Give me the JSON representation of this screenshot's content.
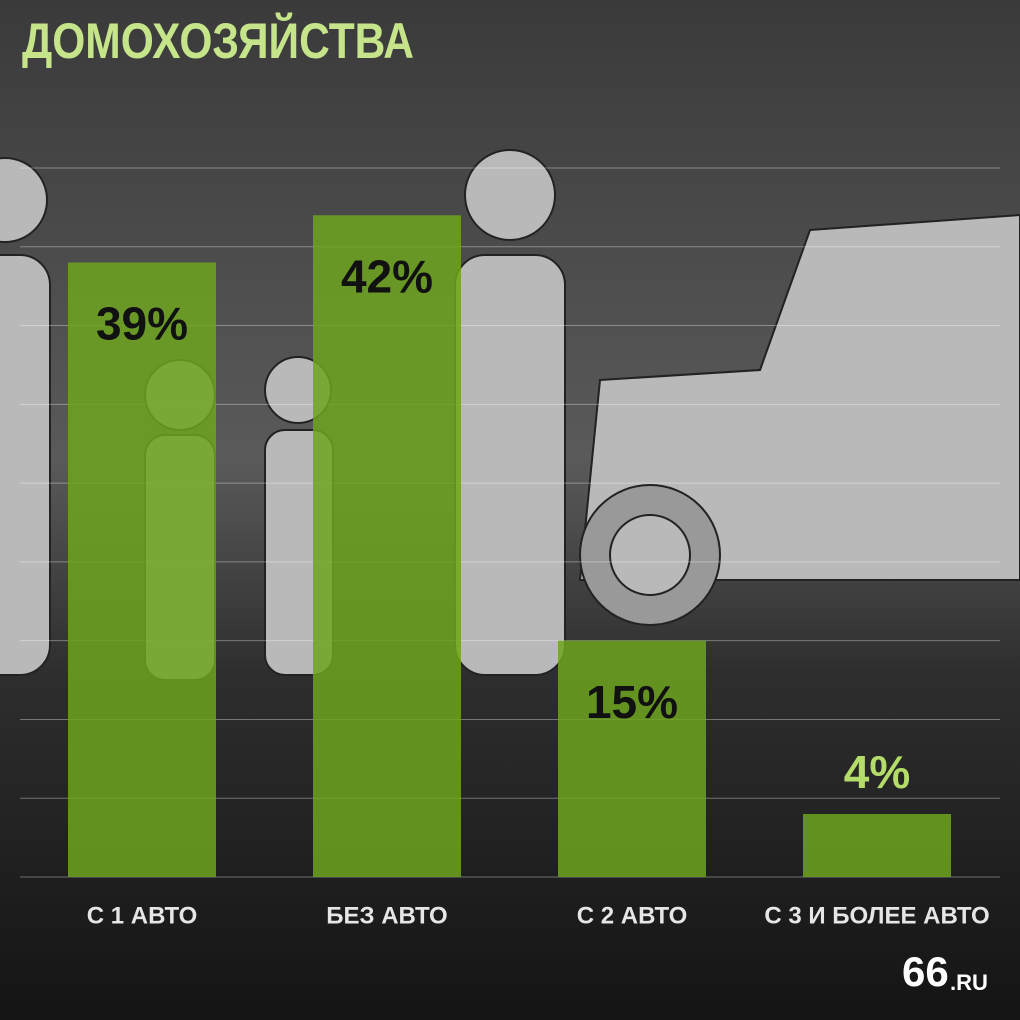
{
  "chart_data": {
    "type": "bar",
    "title": "ДОМОХОЗЯЙСТВА",
    "categories": [
      "С 1 АВТО",
      "БЕЗ АВТО",
      "С 2 АВТО",
      "С 3 И БОЛЕЕ АВТО"
    ],
    "values": [
      39,
      42,
      15,
      4
    ],
    "value_labels": [
      "39%",
      "42%",
      "15%",
      "4%"
    ],
    "color": "#6ea51f",
    "ylim": [
      0,
      45
    ],
    "yticks": [
      0,
      5,
      10,
      15,
      20,
      25,
      30,
      35,
      40,
      45
    ],
    "grid": true,
    "show_tick_labels": false,
    "logo": {
      "main": "66",
      "suffix": ".RU"
    }
  }
}
